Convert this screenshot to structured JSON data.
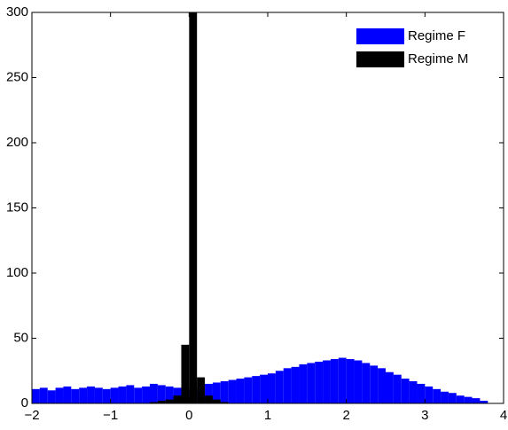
{
  "chart_data": {
    "type": "histogram",
    "bins": [
      -2.0,
      -1.9,
      -1.8,
      -1.7,
      -1.6,
      -1.5,
      -1.4,
      -1.3,
      -1.2,
      -1.1,
      -1.0,
      -0.9,
      -0.8,
      -0.7,
      -0.6,
      -0.5,
      -0.4,
      -0.3,
      -0.2,
      -0.1,
      0.0,
      0.1,
      0.2,
      0.3,
      0.4,
      0.5,
      0.6,
      0.7,
      0.8,
      0.9,
      1.0,
      1.1,
      1.2,
      1.3,
      1.4,
      1.5,
      1.6,
      1.7,
      1.8,
      1.9,
      2.0,
      2.1,
      2.2,
      2.3,
      2.4,
      2.5,
      2.6,
      2.7,
      2.8,
      2.9,
      3.0,
      3.1,
      3.2,
      3.3,
      3.4,
      3.5,
      3.6,
      3.7,
      3.8,
      3.9,
      4.0
    ],
    "series": [
      {
        "name": "Regime F",
        "color": "#0000ff",
        "values": [
          11,
          12,
          10,
          12,
          13,
          11,
          12,
          13,
          12,
          11,
          12,
          13,
          14,
          12,
          13,
          15,
          14,
          13,
          12,
          11,
          10,
          12,
          15,
          16,
          17,
          18,
          19,
          20,
          21,
          22,
          23,
          25,
          27,
          28,
          30,
          31,
          32,
          33,
          34,
          35,
          34,
          33,
          31,
          29,
          27,
          24,
          22,
          19,
          17,
          15,
          13,
          11,
          9,
          8,
          6,
          5,
          4,
          2,
          0,
          0
        ]
      },
      {
        "name": "Regime M",
        "color": "#000000",
        "values": [
          0,
          0,
          0,
          0,
          0,
          0,
          0,
          0,
          0,
          0,
          0,
          0,
          0,
          0,
          0,
          1,
          2,
          3,
          6,
          45,
          300,
          20,
          6,
          3,
          1,
          0,
          0,
          0,
          0,
          0,
          0,
          0,
          0,
          0,
          0,
          0,
          0,
          0,
          0,
          0,
          0,
          0,
          0,
          0,
          0,
          0,
          0,
          0,
          0,
          0,
          0,
          0,
          0,
          0,
          0,
          0,
          0,
          0,
          0,
          0
        ]
      }
    ],
    "xlim": [
      -2,
      4
    ],
    "xticks": [
      {
        "value": -2,
        "label": "−2"
      },
      {
        "value": -1,
        "label": "−1"
      },
      0,
      1,
      2,
      3,
      4
    ],
    "ylim": [
      0,
      300
    ],
    "yticks": [
      0,
      50,
      100,
      150,
      200,
      250,
      300
    ],
    "legend": "northeast"
  }
}
